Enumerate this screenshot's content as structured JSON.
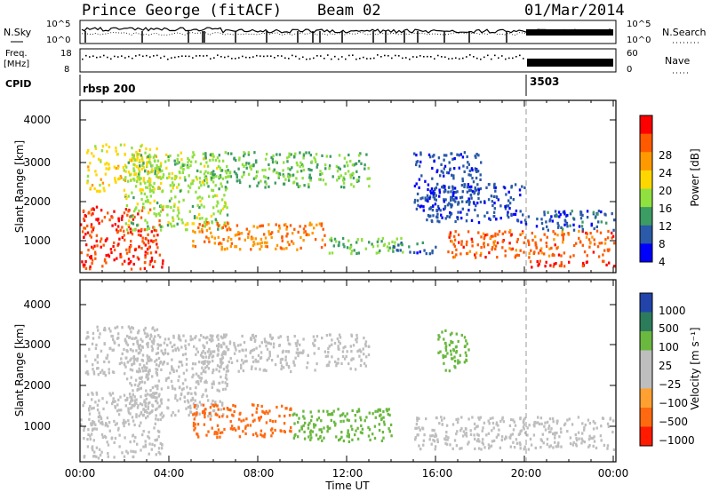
{
  "header": {
    "station": "Prince George (fitACF)",
    "beam": "Beam 02",
    "date": "01/Mar/2014"
  },
  "panels": {
    "noise": {
      "left_label": "N.Sky",
      "right_label": "N.Search",
      "left_ticks": [
        "10^5",
        "10^0"
      ],
      "right_ticks": [
        "10^5",
        "10^0"
      ]
    },
    "freq": {
      "left_label_1": "Freq.",
      "left_label_2": "[MHz]",
      "right_label": "Nave",
      "left_ticks": [
        "18",
        "8"
      ],
      "right_ticks": [
        "60",
        "0"
      ]
    },
    "cpid": {
      "label": "CPID",
      "segments": [
        {
          "start_hour": 0,
          "name": "rbsp 200"
        },
        {
          "start_hour": 20,
          "name": "3503"
        }
      ]
    }
  },
  "axes": {
    "ylabel": "Slant Range [km]",
    "yticks": [
      "4000",
      "3000",
      "2000",
      "1000"
    ],
    "xlabel": "Time UT",
    "xticks": [
      "00:00",
      "04:00",
      "08:00",
      "12:00",
      "16:00",
      "20:00",
      "00:00"
    ]
  },
  "colorbars": {
    "power": {
      "label": "Power [dB]",
      "ticks": [
        "28",
        "24",
        "20",
        "16",
        "12",
        "8",
        "4"
      ],
      "colors": [
        "#ff0000",
        "#ff5a00",
        "#ff9900",
        "#ffd700",
        "#90e040",
        "#3c9c64",
        "#2a5aa8",
        "#0000ff"
      ]
    },
    "velocity": {
      "label": "Velocity [m s⁻¹]",
      "ticks": [
        "1000",
        "500",
        "100",
        "25",
        "−25",
        "−100",
        "−500",
        "−1000"
      ],
      "colors": [
        "#2244aa",
        "#2c7c5c",
        "#6ab840",
        "#bebebe",
        "#bebebe",
        "#ffa030",
        "#ff6a10",
        "#ff1a00"
      ]
    }
  },
  "chart_data": [
    {
      "type": "heatmap",
      "title": "Power",
      "xlabel": "Time UT",
      "ylabel": "Slant Range [km]",
      "xlim_hours": [
        0,
        24
      ],
      "ylim_km": [
        180,
        4600
      ],
      "colorscale_db": [
        0,
        32
      ],
      "regions": [
        {
          "t": [
            0.0,
            3.7
          ],
          "r": [
            300,
            1900
          ],
          "v": 28
        },
        {
          "t": [
            0.2,
            3.6
          ],
          "r": [
            2300,
            3500
          ],
          "v": 18
        },
        {
          "t": [
            2.0,
            6.6
          ],
          "r": [
            1300,
            3300
          ],
          "v": 14
        },
        {
          "t": [
            5.0,
            11.0
          ],
          "r": [
            800,
            1500
          ],
          "v": 24
        },
        {
          "t": [
            5.5,
            13.0
          ],
          "r": [
            2400,
            3300
          ],
          "v": 12
        },
        {
          "t": [
            11.0,
            14.5
          ],
          "r": [
            700,
            1100
          ],
          "v": 13
        },
        {
          "t": [
            14.0,
            16.0
          ],
          "r": [
            700,
            1000
          ],
          "v": 6
        },
        {
          "t": [
            15.0,
            18.0
          ],
          "r": [
            1800,
            3300
          ],
          "v": 5
        },
        {
          "t": [
            15.5,
            20.0
          ],
          "r": [
            1500,
            2500
          ],
          "v": 5
        },
        {
          "t": [
            16.5,
            24.0
          ],
          "r": [
            600,
            1300
          ],
          "v": 26
        },
        {
          "t": [
            20.0,
            24.0
          ],
          "r": [
            350,
            520
          ],
          "v": 28
        },
        {
          "t": [
            20.0,
            24.0
          ],
          "r": [
            1300,
            1800
          ],
          "v": 6
        }
      ]
    },
    {
      "type": "heatmap",
      "title": "Velocity",
      "xlabel": "Time UT",
      "ylabel": "Slant Range [km]",
      "xlim_hours": [
        0,
        24
      ],
      "ylim_km": [
        180,
        4600
      ],
      "colorscale_ms": [
        -1000,
        1000
      ],
      "regions": [
        {
          "t": [
            0.0,
            3.7
          ],
          "r": [
            300,
            1900
          ],
          "v": 0
        },
        {
          "t": [
            0.2,
            3.6
          ],
          "r": [
            2300,
            3500
          ],
          "v": -20
        },
        {
          "t": [
            2.0,
            6.6
          ],
          "r": [
            1300,
            3300
          ],
          "v": 0
        },
        {
          "t": [
            5.0,
            9.5
          ],
          "r": [
            800,
            1600
          ],
          "v": -500
        },
        {
          "t": [
            9.5,
            14.0
          ],
          "r": [
            700,
            1500
          ],
          "v": 100
        },
        {
          "t": [
            5.5,
            13.0
          ],
          "r": [
            2400,
            3300
          ],
          "v": 0
        },
        {
          "t": [
            15.0,
            24.0
          ],
          "r": [
            500,
            1300
          ],
          "v": 0
        },
        {
          "t": [
            16.0,
            17.5
          ],
          "r": [
            2400,
            3400
          ],
          "v": 100
        }
      ]
    }
  ]
}
